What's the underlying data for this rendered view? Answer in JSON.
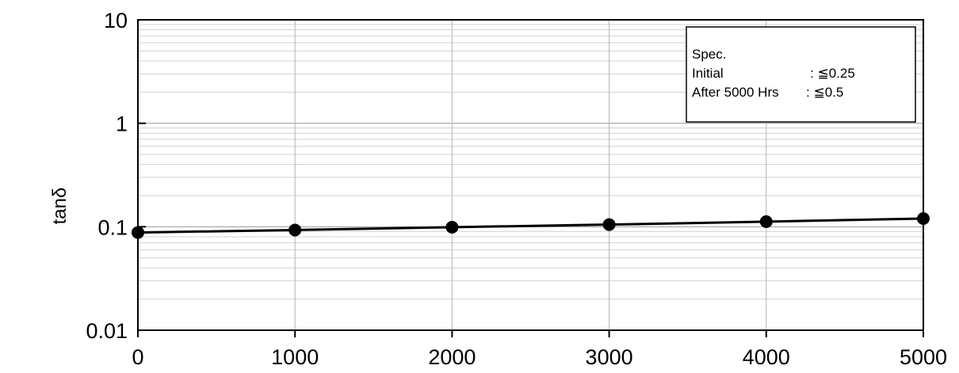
{
  "chart_data": {
    "type": "line",
    "ylabel": "tanδ",
    "xlabel": "",
    "x_scale": "linear",
    "y_scale": "log",
    "xlim": [
      0,
      5000
    ],
    "ylim": [
      0.01,
      10
    ],
    "x_ticks": [
      "0",
      "1000",
      "2000",
      "3000",
      "4000",
      "5000"
    ],
    "y_ticks": [
      "10",
      "1",
      "0.1",
      "0.01"
    ],
    "grid": true,
    "legend_position": "top-right",
    "annotation": {
      "title": "Spec.",
      "line1_label": "Initial",
      "line1_value": ": ≦0.25",
      "line2_label": "After 5000 Hrs",
      "line2_value": ": ≦0.5"
    },
    "series": [
      {
        "x": [
          0,
          1000,
          2000,
          3000,
          4000,
          5000
        ],
        "y": [
          0.088,
          0.093,
          0.099,
          0.105,
          0.112,
          0.12
        ],
        "color": "#000000"
      }
    ]
  }
}
